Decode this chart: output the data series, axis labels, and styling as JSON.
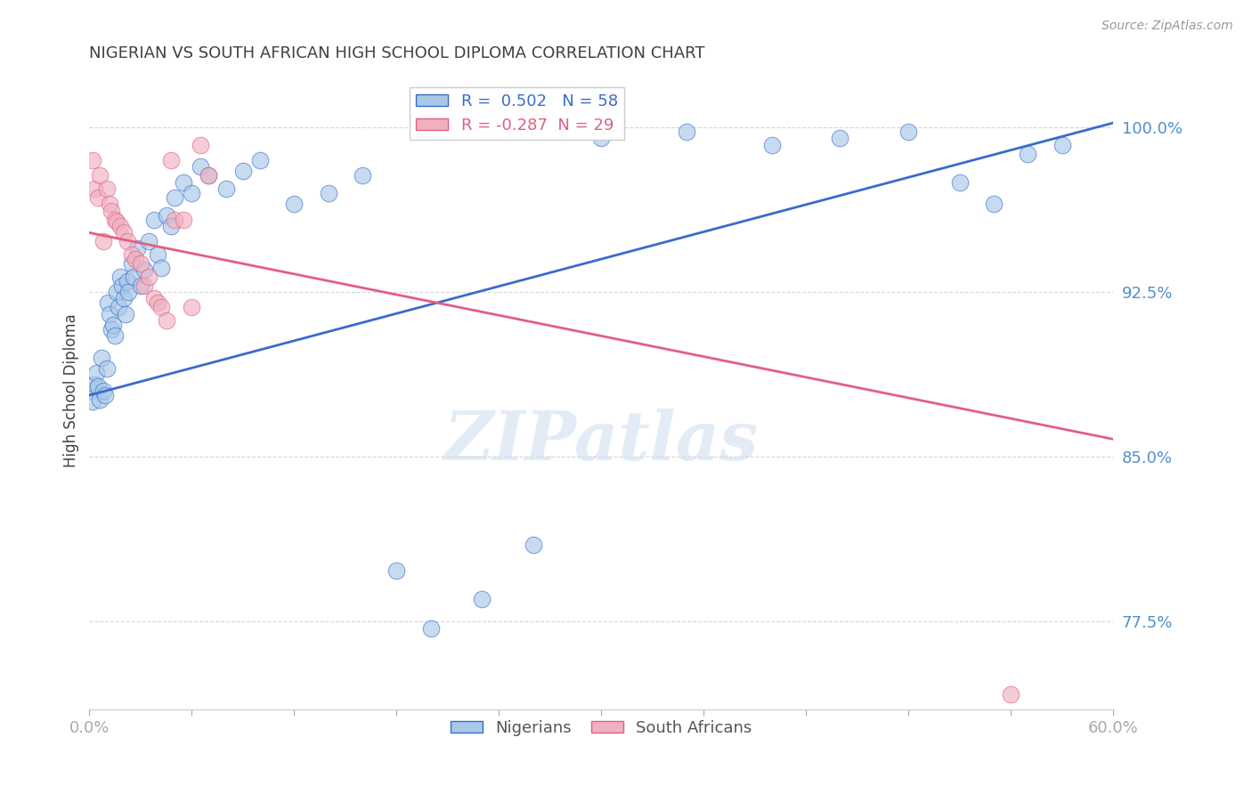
{
  "title": "NIGERIAN VS SOUTH AFRICAN HIGH SCHOOL DIPLOMA CORRELATION CHART",
  "source": "Source: ZipAtlas.com",
  "ylabel": "High School Diploma",
  "ytick_labels": [
    "77.5%",
    "85.0%",
    "92.5%",
    "100.0%"
  ],
  "ytick_values": [
    0.775,
    0.85,
    0.925,
    1.0
  ],
  "xmin": 0.0,
  "xmax": 0.6,
  "ymin": 0.735,
  "ymax": 1.025,
  "r_nigerian": 0.502,
  "n_nigerian": 58,
  "r_south_african": -0.287,
  "n_south_african": 29,
  "nigerian_color": "#a8c8e8",
  "south_african_color": "#f0b0c0",
  "trendline_nigerian_color": "#3a6bcc",
  "trendline_south_african_color": "#e06080",
  "background_color": "#ffffff",
  "grid_color": "#bbbbbb",
  "title_color": "#404040",
  "axis_label_color": "#5090cc",
  "watermark": "ZIPatlas",
  "blue_trend_x0": 0.0,
  "blue_trend_y0": 0.878,
  "blue_trend_x1": 0.6,
  "blue_trend_y1": 1.002,
  "pink_trend_x0": 0.0,
  "pink_trend_y0": 0.952,
  "pink_trend_x1": 0.6,
  "pink_trend_y1": 0.858,
  "nigerian_points_x": [
    0.001,
    0.002,
    0.003,
    0.004,
    0.005,
    0.006,
    0.007,
    0.008,
    0.009,
    0.01,
    0.011,
    0.012,
    0.013,
    0.014,
    0.015,
    0.016,
    0.017,
    0.018,
    0.019,
    0.02,
    0.021,
    0.022,
    0.023,
    0.025,
    0.026,
    0.028,
    0.03,
    0.032,
    0.035,
    0.038,
    0.04,
    0.042,
    0.045,
    0.048,
    0.05,
    0.055,
    0.06,
    0.065,
    0.07,
    0.08,
    0.09,
    0.1,
    0.12,
    0.14,
    0.16,
    0.18,
    0.2,
    0.23,
    0.26,
    0.3,
    0.35,
    0.4,
    0.44,
    0.48,
    0.51,
    0.53,
    0.55,
    0.57
  ],
  "nigerian_points_y": [
    0.88,
    0.875,
    0.883,
    0.888,
    0.882,
    0.876,
    0.895,
    0.88,
    0.878,
    0.89,
    0.92,
    0.915,
    0.908,
    0.91,
    0.905,
    0.925,
    0.918,
    0.932,
    0.928,
    0.922,
    0.915,
    0.93,
    0.925,
    0.938,
    0.932,
    0.945,
    0.928,
    0.935,
    0.948,
    0.958,
    0.942,
    0.936,
    0.96,
    0.955,
    0.968,
    0.975,
    0.97,
    0.982,
    0.978,
    0.972,
    0.98,
    0.985,
    0.965,
    0.97,
    0.978,
    0.798,
    0.772,
    0.785,
    0.81,
    0.995,
    0.998,
    0.992,
    0.995,
    0.998,
    0.975,
    0.965,
    0.988,
    0.992
  ],
  "south_african_points_x": [
    0.002,
    0.003,
    0.005,
    0.006,
    0.008,
    0.01,
    0.012,
    0.013,
    0.015,
    0.016,
    0.018,
    0.02,
    0.022,
    0.025,
    0.027,
    0.03,
    0.032,
    0.035,
    0.038,
    0.04,
    0.042,
    0.045,
    0.048,
    0.05,
    0.055,
    0.06,
    0.065,
    0.07,
    0.54
  ],
  "south_african_points_y": [
    0.985,
    0.972,
    0.968,
    0.978,
    0.948,
    0.972,
    0.965,
    0.962,
    0.958,
    0.957,
    0.955,
    0.952,
    0.948,
    0.942,
    0.94,
    0.938,
    0.928,
    0.932,
    0.922,
    0.92,
    0.918,
    0.912,
    0.985,
    0.958,
    0.958,
    0.918,
    0.992,
    0.978,
    0.742
  ]
}
